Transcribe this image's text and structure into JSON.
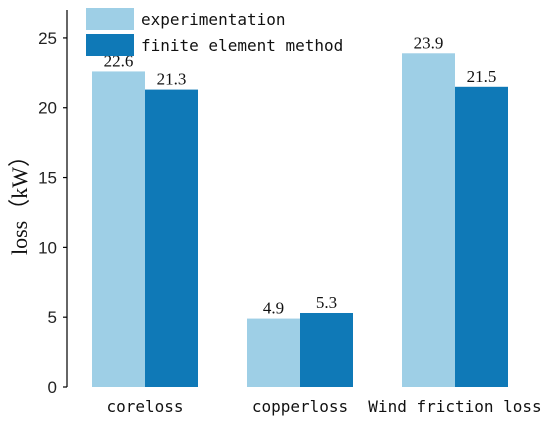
{
  "chart_data": {
    "type": "bar",
    "categories": [
      "coreloss",
      "copperloss",
      "Wind friction loss"
    ],
    "series": [
      {
        "name": "experimentation",
        "values": [
          22.6,
          4.9,
          23.9
        ],
        "color": "#9ecfe6"
      },
      {
        "name": "finite element method",
        "values": [
          21.3,
          5.3,
          21.5
        ],
        "color": "#0f79b7"
      }
    ],
    "ylabel": "loss（kW）",
    "ylim": [
      0,
      27
    ],
    "yticks": [
      0,
      5,
      10,
      15,
      20,
      25
    ],
    "grid": false,
    "legend": "top"
  }
}
